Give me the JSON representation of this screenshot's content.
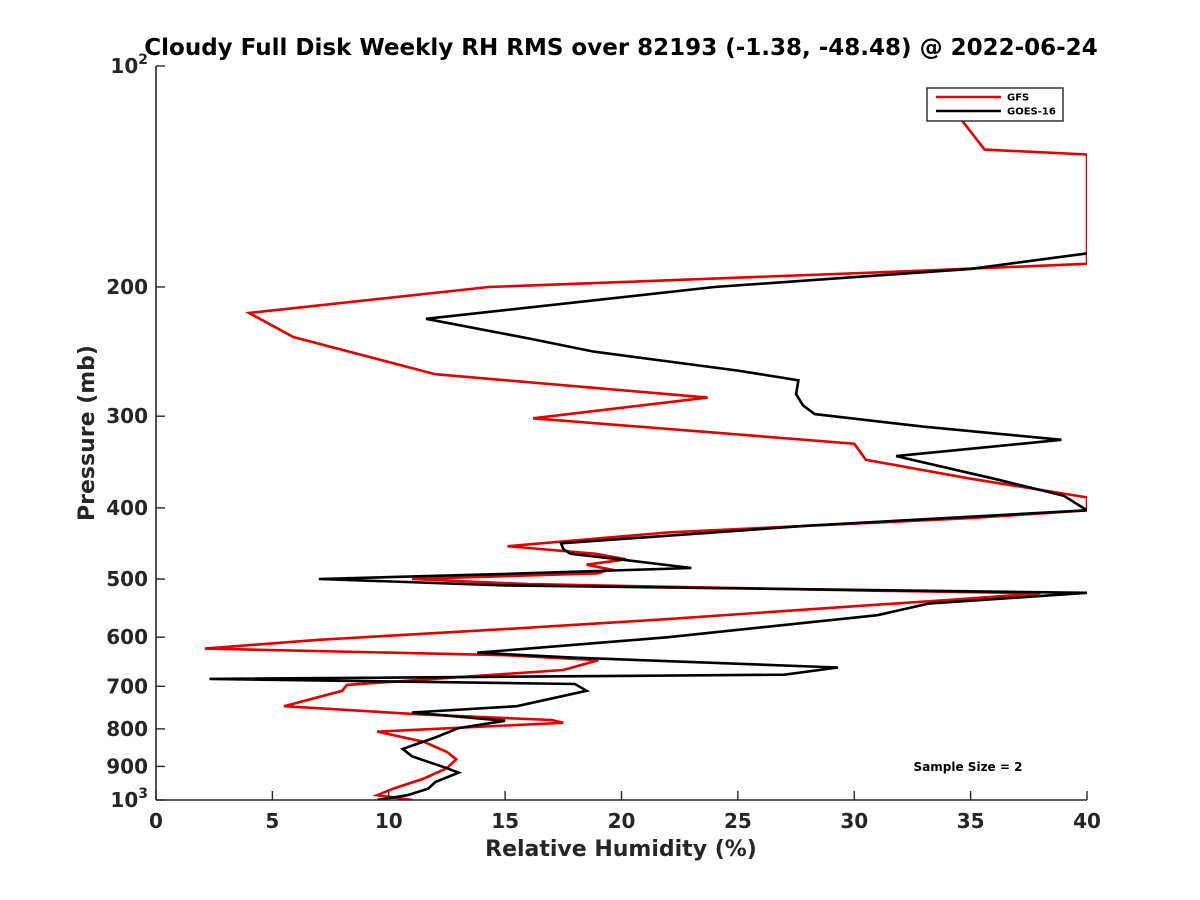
{
  "chart_data": {
    "type": "line",
    "title": "Cloudy Full Disk Weekly RH RMS over 82193 (-1.38, -48.48) @ 2022-06-24",
    "xlabel": "Relative Humidity (%)",
    "ylabel": "Pressure (mb)",
    "xlim": [
      0,
      40
    ],
    "ylim": [
      100,
      1000
    ],
    "y_scale": "log",
    "y_reversed": true,
    "grid": false,
    "legend_position": "top-right",
    "annotation": "Sample Size = 2",
    "x_ticks": [
      0,
      5,
      10,
      15,
      20,
      25,
      30,
      35,
      40
    ],
    "x_tick_labels": [
      "0",
      "5",
      "10",
      "15",
      "20",
      "25",
      "30",
      "35",
      "40"
    ],
    "y_ticks": [
      100,
      200,
      300,
      400,
      500,
      600,
      700,
      800,
      900,
      1000
    ],
    "y_tick_labels": [
      {
        "base": "10",
        "exp": "2"
      },
      {
        "base": "200",
        "exp": ""
      },
      {
        "base": "300",
        "exp": ""
      },
      {
        "base": "400",
        "exp": ""
      },
      {
        "base": "500",
        "exp": ""
      },
      {
        "base": "600",
        "exp": ""
      },
      {
        "base": "700",
        "exp": ""
      },
      {
        "base": "800",
        "exp": ""
      },
      {
        "base": "900",
        "exp": ""
      },
      {
        "base": "10",
        "exp": "3"
      }
    ],
    "series": [
      {
        "name": "GFS",
        "color": "#e00000",
        "points": [
          [
            34.3,
            115
          ],
          [
            35.6,
            130
          ],
          [
            40.0,
            132
          ],
          [
            40.0,
            186
          ],
          [
            33.0,
            190
          ],
          [
            20.0,
            197
          ],
          [
            14.3,
            200
          ],
          [
            4.0,
            217
          ],
          [
            5.9,
            234
          ],
          [
            12.0,
            263
          ],
          [
            23.7,
            283
          ],
          [
            16.2,
            302
          ],
          [
            30.0,
            327
          ],
          [
            30.5,
            344
          ],
          [
            35.0,
            365
          ],
          [
            40.0,
            387
          ],
          [
            40.0,
            403
          ],
          [
            35.0,
            413
          ],
          [
            22.0,
            432
          ],
          [
            15.1,
            451
          ],
          [
            18.9,
            462
          ],
          [
            20.2,
            470
          ],
          [
            18.5,
            478
          ],
          [
            19.5,
            485
          ],
          [
            19.0,
            491
          ],
          [
            11.0,
            500
          ],
          [
            16.0,
            508
          ],
          [
            30.0,
            518
          ],
          [
            38.0,
            523
          ],
          [
            34.0,
            534
          ],
          [
            28.0,
            550
          ],
          [
            22.0,
            567
          ],
          [
            15.0,
            585
          ],
          [
            7.0,
            605
          ],
          [
            2.1,
            622
          ],
          [
            15.0,
            635
          ],
          [
            19.0,
            645
          ],
          [
            17.5,
            665
          ],
          [
            8.2,
            697
          ],
          [
            8.0,
            710
          ],
          [
            5.5,
            745
          ],
          [
            11.5,
            765
          ],
          [
            17.0,
            778
          ],
          [
            17.5,
            785
          ],
          [
            9.5,
            807
          ],
          [
            11.5,
            833
          ],
          [
            12.5,
            860
          ],
          [
            12.9,
            880
          ],
          [
            12.5,
            905
          ],
          [
            11.5,
            935
          ],
          [
            10.2,
            965
          ],
          [
            9.5,
            985
          ],
          [
            11.0,
            1000
          ]
        ]
      },
      {
        "name": "GOES-16",
        "color": "#000000",
        "points": [
          [
            40.0,
            180
          ],
          [
            35.0,
            189
          ],
          [
            24.0,
            200
          ],
          [
            11.6,
            221
          ],
          [
            16.0,
            235
          ],
          [
            18.8,
            245
          ],
          [
            25.0,
            260
          ],
          [
            27.6,
            268
          ],
          [
            27.5,
            280
          ],
          [
            27.8,
            290
          ],
          [
            28.3,
            298
          ],
          [
            33.0,
            310
          ],
          [
            38.9,
            323
          ],
          [
            31.8,
            340
          ],
          [
            36.0,
            365
          ],
          [
            39.0,
            385
          ],
          [
            40.0,
            403
          ],
          [
            28.0,
            423
          ],
          [
            17.4,
            447
          ],
          [
            17.5,
            455
          ],
          [
            17.8,
            462
          ],
          [
            19.9,
            470
          ],
          [
            23.0,
            483
          ],
          [
            15.0,
            492
          ],
          [
            7.0,
            500
          ],
          [
            15.0,
            510
          ],
          [
            40.0,
            522
          ],
          [
            33.2,
            540
          ],
          [
            31.0,
            560
          ],
          [
            22.0,
            600
          ],
          [
            13.8,
            630
          ],
          [
            18.0,
            640
          ],
          [
            29.3,
            660
          ],
          [
            27.0,
            675
          ],
          [
            2.3,
            684
          ],
          [
            18.0,
            695
          ],
          [
            18.5,
            710
          ],
          [
            15.5,
            745
          ],
          [
            11.0,
            760
          ],
          [
            15.0,
            780
          ],
          [
            13.0,
            798
          ],
          [
            12.0,
            822
          ],
          [
            10.6,
            852
          ],
          [
            11.0,
            872
          ],
          [
            12.5,
            905
          ],
          [
            13.0,
            918
          ],
          [
            12.0,
            945
          ],
          [
            11.7,
            965
          ],
          [
            10.8,
            985
          ],
          [
            9.5,
            1000
          ]
        ]
      }
    ]
  }
}
